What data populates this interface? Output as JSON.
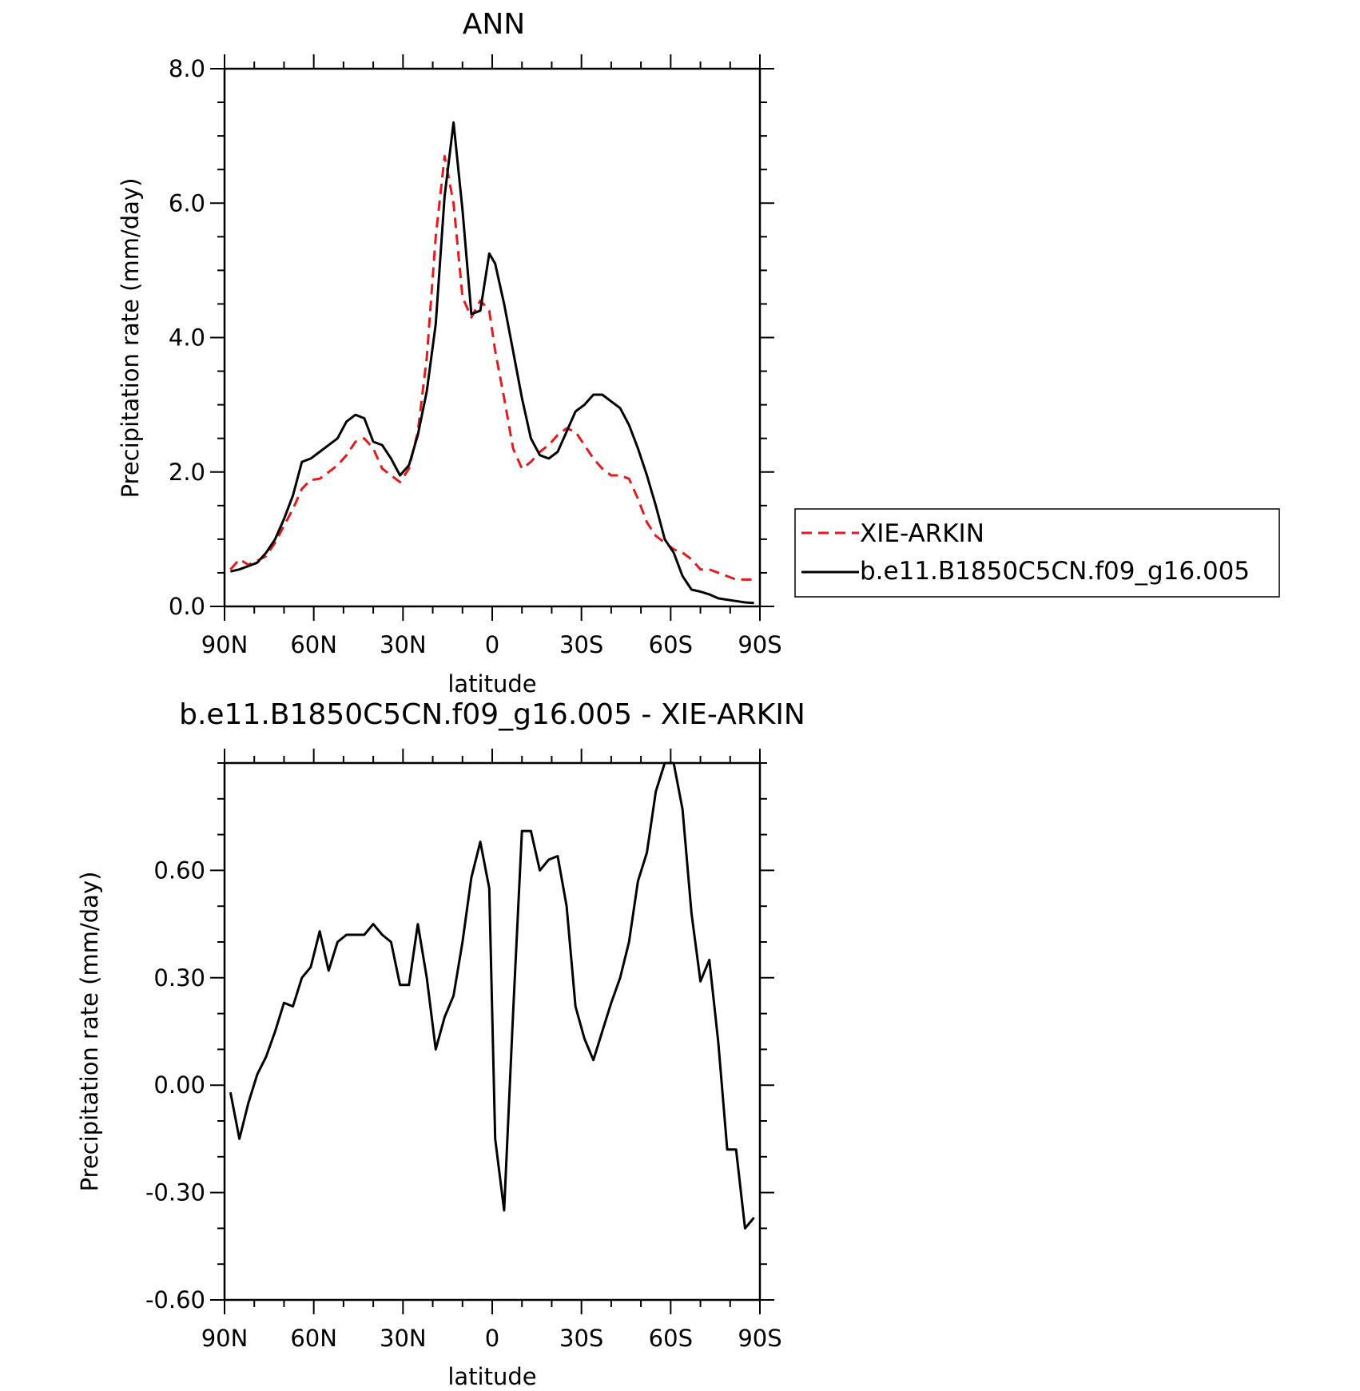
{
  "chart_data": [
    {
      "type": "line",
      "title": "ANN",
      "xlabel": "latitude",
      "ylabel": "Precipitation rate (mm/day)",
      "xlim": [
        90,
        -90
      ],
      "ylim": [
        0,
        8
      ],
      "x_tick_labels": [
        "90N",
        "60N",
        "30N",
        "0",
        "30S",
        "60S",
        "90S"
      ],
      "y_tick_labels": [
        "0.0",
        "2.0",
        "4.0",
        "6.0",
        "8.0"
      ],
      "legend_position": "right",
      "x": [
        88,
        85,
        82,
        79,
        76,
        73,
        70,
        67,
        64,
        61,
        58,
        55,
        52,
        49,
        46,
        43,
        40,
        37,
        34,
        31,
        28,
        25,
        22,
        19,
        16,
        13,
        10,
        7,
        4,
        1,
        -1,
        -4,
        -7,
        -10,
        -13,
        -16,
        -19,
        -22,
        -25,
        -28,
        -31,
        -34,
        -37,
        -40,
        -43,
        -46,
        -49,
        -52,
        -55,
        -58,
        -61,
        -64,
        -67,
        -70,
        -73,
        -76,
        -79,
        -82,
        -85,
        -88
      ],
      "series": [
        {
          "name": "XIE-ARKIN",
          "color": "#e41a1c",
          "dash": "dashed",
          "values": [
            0.55,
            0.7,
            0.62,
            0.68,
            0.75,
            0.95,
            1.2,
            1.45,
            1.75,
            1.88,
            1.9,
            2.0,
            2.1,
            2.25,
            2.45,
            2.5,
            2.35,
            2.05,
            1.95,
            1.85,
            2.05,
            2.6,
            3.7,
            5.5,
            6.7,
            6.0,
            4.6,
            4.3,
            4.55,
            4.4,
            3.8,
            3.1,
            2.35,
            2.05,
            2.15,
            2.3,
            2.4,
            2.55,
            2.65,
            2.6,
            2.4,
            2.2,
            2.05,
            1.95,
            1.95,
            1.9,
            1.6,
            1.25,
            1.05,
            0.95,
            0.85,
            0.8,
            0.7,
            0.55,
            0.55,
            0.5,
            0.45,
            0.4,
            0.4,
            0.4
          ]
        },
        {
          "name": "b.e11.B1850C5CN.f09_g16.005",
          "color": "#000000",
          "dash": "solid",
          "values": [
            0.52,
            0.55,
            0.6,
            0.65,
            0.8,
            1.0,
            1.3,
            1.65,
            2.15,
            2.2,
            2.3,
            2.4,
            2.5,
            2.75,
            2.85,
            2.8,
            2.45,
            2.4,
            2.2,
            1.95,
            2.1,
            2.55,
            3.2,
            4.2,
            6.1,
            7.2,
            5.9,
            4.35,
            4.4,
            5.25,
            5.1,
            4.5,
            3.8,
            3.1,
            2.5,
            2.25,
            2.2,
            2.3,
            2.6,
            2.9,
            3.0,
            3.15,
            3.15,
            3.05,
            2.95,
            2.7,
            2.35,
            1.95,
            1.5,
            1.0,
            0.8,
            0.45,
            0.25,
            0.22,
            0.18,
            0.12,
            0.1,
            0.08,
            0.06,
            0.05
          ]
        }
      ]
    },
    {
      "type": "line",
      "title": "b.e11.B1850C5CN.f09_g16.005 - XIE-ARKIN",
      "xlabel": "latitude",
      "ylabel": "Precipitation rate (mm/day)",
      "xlim": [
        90,
        -90
      ],
      "ylim": [
        -0.6,
        0.9
      ],
      "x_tick_labels": [
        "90N",
        "60N",
        "30N",
        "0",
        "30S",
        "60S",
        "90S"
      ],
      "y_tick_labels": [
        "-0.60",
        "-0.30",
        "0.00",
        "0.30",
        "0.60"
      ],
      "x": [
        88,
        85,
        82,
        79,
        76,
        73,
        70,
        67,
        64,
        61,
        58,
        55,
        52,
        49,
        46,
        43,
        40,
        37,
        34,
        31,
        28,
        25,
        22,
        19,
        16,
        13,
        10,
        7,
        4,
        1,
        -1,
        -4,
        -7,
        -10,
        -13,
        -16,
        -19,
        -22,
        -25,
        -28,
        -31,
        -34,
        -37,
        -40,
        -43,
        -46,
        -49,
        -52,
        -55,
        -58,
        -61,
        -64,
        -67,
        -70,
        -73,
        -76,
        -79,
        -82,
        -85,
        -88
      ],
      "series": [
        {
          "color": "#000000",
          "dash": "solid",
          "values": [
            -0.02,
            -0.15,
            -0.05,
            0.03,
            0.08,
            0.15,
            0.23,
            0.22,
            0.3,
            0.33,
            0.43,
            0.32,
            0.4,
            0.42,
            0.42,
            0.42,
            0.45,
            0.42,
            0.4,
            0.28,
            0.28,
            0.45,
            0.3,
            0.1,
            0.19,
            0.25,
            0.4,
            0.58,
            0.68,
            0.55,
            -0.15,
            -0.35,
            0.2,
            0.71,
            0.71,
            0.6,
            0.63,
            0.64,
            0.5,
            0.22,
            0.13,
            0.07,
            0.15,
            0.23,
            0.3,
            0.4,
            0.57,
            0.65,
            0.82,
            0.9,
            0.9,
            0.77,
            0.48,
            0.29,
            0.35,
            0.12,
            -0.18,
            -0.18,
            -0.4,
            -0.37
          ]
        }
      ]
    }
  ]
}
